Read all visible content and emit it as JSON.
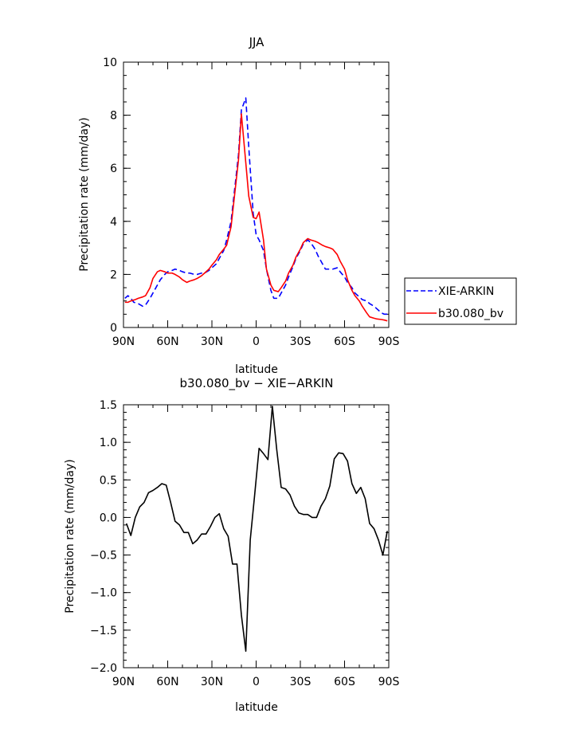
{
  "chart_data": [
    {
      "type": "line",
      "title": "JJA",
      "xlabel": "latitude",
      "ylabel": "Precipitation rate (mm/day)",
      "xlim": [
        -90,
        90
      ],
      "ylim": [
        0,
        10
      ],
      "x_ticks": [
        -90,
        -60,
        -30,
        0,
        30,
        60,
        90
      ],
      "x_tick_labels": [
        "90N",
        "60N",
        "30N",
        "0",
        "30S",
        "60S",
        "90S"
      ],
      "y_ticks": [
        0,
        2,
        4,
        6,
        8,
        10
      ],
      "y_tick_labels": [
        "0",
        "2",
        "4",
        "6",
        "8",
        "10"
      ],
      "legend_position": "right",
      "series": [
        {
          "name": "XIE-ARKIN",
          "color": "#0000ff",
          "style": "dashed",
          "x": [
            -89,
            -87,
            -85,
            -83,
            -80,
            -77,
            -75,
            -72,
            -70,
            -67,
            -65,
            -62,
            -60,
            -57,
            -55,
            -52,
            -50,
            -47,
            -45,
            -42,
            -40,
            -37,
            -35,
            -32,
            -30,
            -27,
            -25,
            -22,
            -20,
            -17,
            -15,
            -12,
            -10,
            -7,
            -5,
            -2,
            0,
            2,
            5,
            7,
            10,
            12,
            15,
            17,
            20,
            22,
            25,
            27,
            30,
            32,
            35,
            37,
            40,
            42,
            45,
            47,
            50,
            52,
            55,
            57,
            60,
            62,
            65,
            67,
            70,
            72,
            75,
            77,
            80,
            82,
            85,
            87,
            89
          ],
          "y": [
            1.1,
            1.2,
            1.1,
            0.95,
            0.9,
            0.8,
            0.85,
            1.1,
            1.3,
            1.6,
            1.8,
            2.0,
            2.1,
            2.15,
            2.2,
            2.15,
            2.1,
            2.05,
            2.05,
            2.0,
            2.0,
            2.05,
            2.05,
            2.15,
            2.25,
            2.4,
            2.6,
            2.9,
            3.3,
            4.0,
            5.0,
            6.5,
            8.2,
            8.65,
            6.8,
            4.3,
            3.5,
            3.3,
            2.9,
            2.2,
            1.4,
            1.1,
            1.1,
            1.3,
            1.6,
            1.9,
            2.3,
            2.6,
            2.9,
            3.15,
            3.3,
            3.2,
            2.95,
            2.7,
            2.4,
            2.2,
            2.2,
            2.2,
            2.25,
            2.1,
            1.9,
            1.7,
            1.5,
            1.3,
            1.15,
            1.05,
            1.0,
            0.9,
            0.8,
            0.7,
            0.55,
            0.5,
            0.5
          ]
        },
        {
          "name": "b30.080_bv",
          "color": "#ff0000",
          "style": "solid",
          "x": [
            -89,
            -87,
            -85,
            -82,
            -80,
            -77,
            -75,
            -72,
            -70,
            -67,
            -65,
            -62,
            -60,
            -57,
            -55,
            -52,
            -50,
            -47,
            -45,
            -42,
            -40,
            -37,
            -35,
            -32,
            -30,
            -27,
            -25,
            -22,
            -20,
            -17,
            -15,
            -12,
            -10,
            -7,
            -5,
            -2,
            0,
            2,
            5,
            7,
            10,
            12,
            15,
            17,
            20,
            22,
            25,
            27,
            30,
            32,
            35,
            37,
            40,
            42,
            45,
            47,
            50,
            52,
            55,
            57,
            60,
            62,
            65,
            67,
            70,
            72,
            75,
            77,
            80,
            82,
            85,
            87,
            89
          ],
          "y": [
            0.95,
            0.95,
            1.0,
            1.05,
            1.1,
            1.15,
            1.2,
            1.5,
            1.85,
            2.1,
            2.15,
            2.1,
            2.05,
            2.05,
            2.0,
            1.9,
            1.8,
            1.7,
            1.75,
            1.8,
            1.85,
            1.95,
            2.05,
            2.2,
            2.35,
            2.55,
            2.75,
            2.95,
            3.1,
            3.8,
            4.8,
            6.3,
            8.05,
            6.2,
            4.95,
            4.15,
            4.1,
            4.35,
            3.3,
            2.2,
            1.6,
            1.4,
            1.35,
            1.5,
            1.75,
            2.05,
            2.35,
            2.65,
            2.95,
            3.2,
            3.35,
            3.3,
            3.25,
            3.2,
            3.1,
            3.05,
            3.0,
            2.95,
            2.75,
            2.5,
            2.2,
            1.8,
            1.4,
            1.2,
            1.0,
            0.8,
            0.55,
            0.4,
            0.35,
            0.32,
            0.3,
            0.28,
            0.25
          ]
        }
      ]
    },
    {
      "type": "line",
      "title": "b30.080_bv − XIE−ARKIN",
      "xlabel": "latitude",
      "ylabel": "Precipitation rate (mm/day)",
      "xlim": [
        -90,
        90
      ],
      "ylim": [
        -2.0,
        1.5
      ],
      "x_ticks": [
        -90,
        -60,
        -30,
        0,
        30,
        60,
        90
      ],
      "x_tick_labels": [
        "90N",
        "60N",
        "30N",
        "0",
        "30S",
        "60S",
        "90S"
      ],
      "y_ticks": [
        -2.0,
        -1.5,
        -1.0,
        -0.5,
        0.0,
        0.5,
        1.0,
        1.5
      ],
      "y_tick_labels": [
        "−2.0",
        "−1.5",
        "−1.0",
        "−0.5",
        "0.0",
        "0.5",
        "1.0",
        "1.5"
      ],
      "series": [
        {
          "color": "#000000",
          "style": "solid",
          "x": [
            -88,
            -85,
            -82,
            -79,
            -76,
            -73,
            -70,
            -67,
            -64,
            -61,
            -58,
            -55,
            -52,
            -49,
            -46,
            -43,
            -40,
            -37,
            -34,
            -31,
            -28,
            -25,
            -22,
            -19,
            -16,
            -13,
            -10,
            -7,
            -4,
            -1,
            2,
            5,
            8,
            11,
            14,
            17,
            20,
            23,
            26,
            29,
            32,
            35,
            38,
            41,
            44,
            47,
            50,
            53,
            56,
            59,
            62,
            65,
            68,
            71,
            74,
            77,
            80,
            83,
            86,
            89
          ],
          "y": [
            -0.08,
            -0.24,
            0.0,
            0.14,
            0.2,
            0.33,
            0.36,
            0.4,
            0.45,
            0.43,
            0.2,
            -0.05,
            -0.1,
            -0.2,
            -0.2,
            -0.35,
            -0.3,
            -0.22,
            -0.22,
            -0.12,
            0.0,
            0.05,
            -0.15,
            -0.25,
            -0.62,
            -0.62,
            -1.3,
            -1.78,
            -0.3,
            0.3,
            0.92,
            0.85,
            0.77,
            1.48,
            0.9,
            0.4,
            0.38,
            0.3,
            0.15,
            0.06,
            0.04,
            0.04,
            0.0,
            0.0,
            0.15,
            0.25,
            0.42,
            0.78,
            0.86,
            0.85,
            0.75,
            0.45,
            0.32,
            0.4,
            0.25,
            -0.08,
            -0.15,
            -0.3,
            -0.5,
            -0.18
          ]
        }
      ]
    }
  ]
}
